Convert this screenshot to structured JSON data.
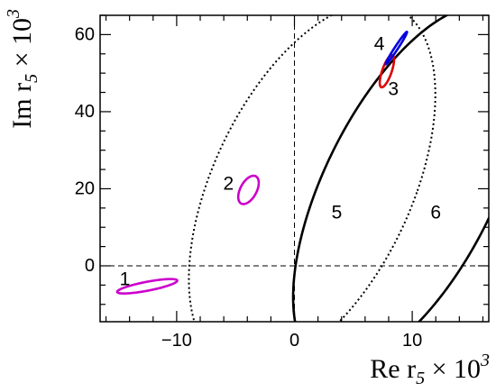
{
  "chart_data": {
    "type": "line",
    "title": "",
    "xlabel": "Re r",
    "xlabel_sub": "5",
    "xlabel_factor": " × 10",
    "xlabel_exp": "3",
    "ylabel": "Im r",
    "ylabel_sub": "5",
    "ylabel_factor": " × 10",
    "ylabel_exp": "3",
    "xlim": [
      -16.5,
      16.5
    ],
    "ylim": [
      -14.5,
      65
    ],
    "xticks": [
      -10,
      0,
      10
    ],
    "yticks": [
      0,
      20,
      40,
      60
    ],
    "xtick_labels": [
      "−10",
      "0",
      "10"
    ],
    "ytick_labels": [
      "0",
      "20",
      "40",
      "60"
    ],
    "grid": false,
    "reference_lines": {
      "x0": true,
      "y0": true
    },
    "ellipses": [
      {
        "label": "1",
        "cx": -12.5,
        "cy": -5.3,
        "rx": 3.0,
        "ry": 1.0,
        "angle_deg": -34,
        "color": "#cc00cc",
        "label_x": -14.4,
        "label_y": -3.5
      },
      {
        "label": "2",
        "cx": -3.9,
        "cy": 19.7,
        "rx": 0.75,
        "ry": 3.7,
        "angle_deg": 7,
        "color": "#cc00cc",
        "label_x": -5.6,
        "label_y": 21.3
      },
      {
        "label": "3",
        "cx": 7.85,
        "cy": 50.5,
        "rx": 0.42,
        "ry": 4.2,
        "angle_deg": 6,
        "color": "#dd0000",
        "label_x": 8.4,
        "label_y": 45.8
      },
      {
        "label": "4",
        "cx": 8.65,
        "cy": 56.5,
        "rx": 0.16,
        "ry": 4.3,
        "angle_deg": 12,
        "color": "#0000dd",
        "label_x": 7.2,
        "label_y": 57.5
      }
    ],
    "contours": [
      {
        "label": "5",
        "style": "dotted",
        "color": "#000000",
        "cx": 1.5,
        "cy": 20.5,
        "rx": 9.0,
        "ry": 48.0,
        "angle_deg": 6.5,
        "label_x": 3.6,
        "label_y": 13.8
      },
      {
        "label": "6",
        "style": "solid",
        "color": "#000000",
        "cx": 9.8,
        "cy": 20.5,
        "rx": 7.8,
        "ry": 47.5,
        "angle_deg": 7.5,
        "label_x": 12.0,
        "label_y": 13.8
      }
    ]
  }
}
